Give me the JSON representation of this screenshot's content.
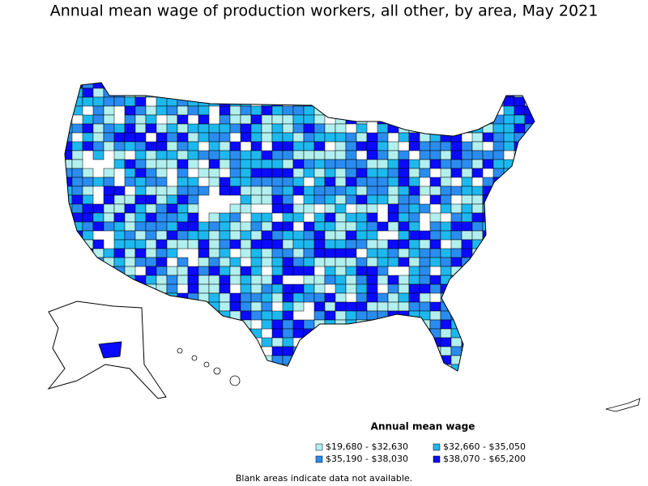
{
  "title": "Annual mean wage of production workers, all other, by area, May 2021",
  "legend": {
    "title": "Annual mean wage",
    "items": [
      {
        "label": "$19,680 - $32,630",
        "color": "#b2f0f0"
      },
      {
        "label": "$32,660 - $35,050",
        "color": "#1eb8f0"
      },
      {
        "label": "$35,190 - $38,030",
        "color": "#2a8cf0"
      },
      {
        "label": "$38,070 - $65,200",
        "color": "#0a0aff"
      }
    ]
  },
  "note": "Blank areas indicate data not available."
}
